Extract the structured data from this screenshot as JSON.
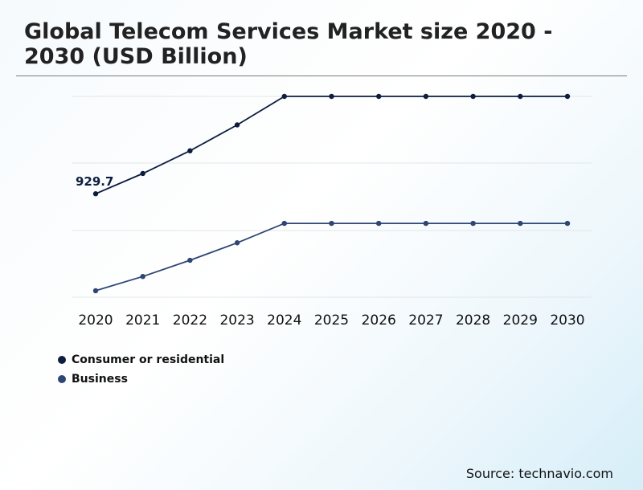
{
  "header": {
    "title": "Global Telecom Services Market size 2020 - 2030 (USD Billion)"
  },
  "source": "Source: technavio.com",
  "colors": {
    "consumer": "#0e1d3f",
    "business": "#2f4574",
    "grid": "#e2e6ea"
  },
  "chart_data": {
    "type": "line",
    "title": "Global Telecom Services Market size 2020 - 2030 (USD Billion)",
    "categories": [
      "2020",
      "2021",
      "2022",
      "2023",
      "2024",
      "2025",
      "2026",
      "2027",
      "2028",
      "2029",
      "2030"
    ],
    "series": [
      {
        "name": "Consumer or residential",
        "values": [
          929.7,
          961,
          996,
          1036,
          1080,
          1080,
          1080,
          1080,
          1080,
          1080,
          1080
        ],
        "label": "929.7"
      },
      {
        "name": "Business",
        "values": [
          780,
          802,
          827,
          854,
          884,
          884,
          884,
          884,
          884,
          884,
          884
        ]
      }
    ],
    "ylim": [
      770,
      1080
    ],
    "grid": true,
    "xlabel": "",
    "ylabel": "",
    "legend": "bottom-left"
  }
}
